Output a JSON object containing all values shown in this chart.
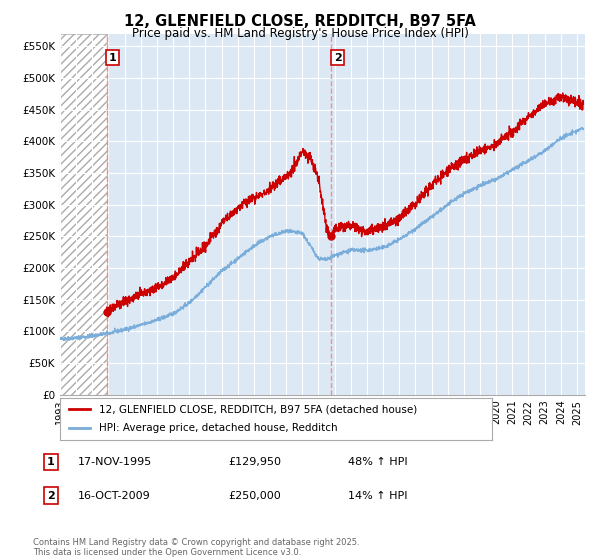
{
  "title": "12, GLENFIELD CLOSE, REDDITCH, B97 5FA",
  "subtitle": "Price paid vs. HM Land Registry's House Price Index (HPI)",
  "ylabel_ticks": [
    "£0",
    "£50K",
    "£100K",
    "£150K",
    "£200K",
    "£250K",
    "£300K",
    "£350K",
    "£400K",
    "£450K",
    "£500K",
    "£550K"
  ],
  "ytick_values": [
    0,
    50000,
    100000,
    150000,
    200000,
    250000,
    300000,
    350000,
    400000,
    450000,
    500000,
    550000
  ],
  "ylim": [
    0,
    570000
  ],
  "xlim_start": 1993.0,
  "xlim_end": 2025.5,
  "hatch_region_end": 1995.88,
  "purchase1_x": 1995.88,
  "purchase1_y": 129950,
  "purchase1_label": "1",
  "purchase2_x": 2009.79,
  "purchase2_y": 250000,
  "purchase2_label": "2",
  "red_line_color": "#cc0000",
  "blue_line_color": "#7aadda",
  "vline_color": "#ee8888",
  "marker_color": "#cc0000",
  "hatch_color": "#cccccc",
  "legend_label1": "12, GLENFIELD CLOSE, REDDITCH, B97 5FA (detached house)",
  "legend_label2": "HPI: Average price, detached house, Redditch",
  "annotation1_date": "17-NOV-1995",
  "annotation1_price": "£129,950",
  "annotation1_hpi": "48% ↑ HPI",
  "annotation2_date": "16-OCT-2009",
  "annotation2_price": "£250,000",
  "annotation2_hpi": "14% ↑ HPI",
  "footer": "Contains HM Land Registry data © Crown copyright and database right 2025.\nThis data is licensed under the Open Government Licence v3.0.",
  "background_color": "#ffffff",
  "plot_bg_color": "#dce9f5"
}
